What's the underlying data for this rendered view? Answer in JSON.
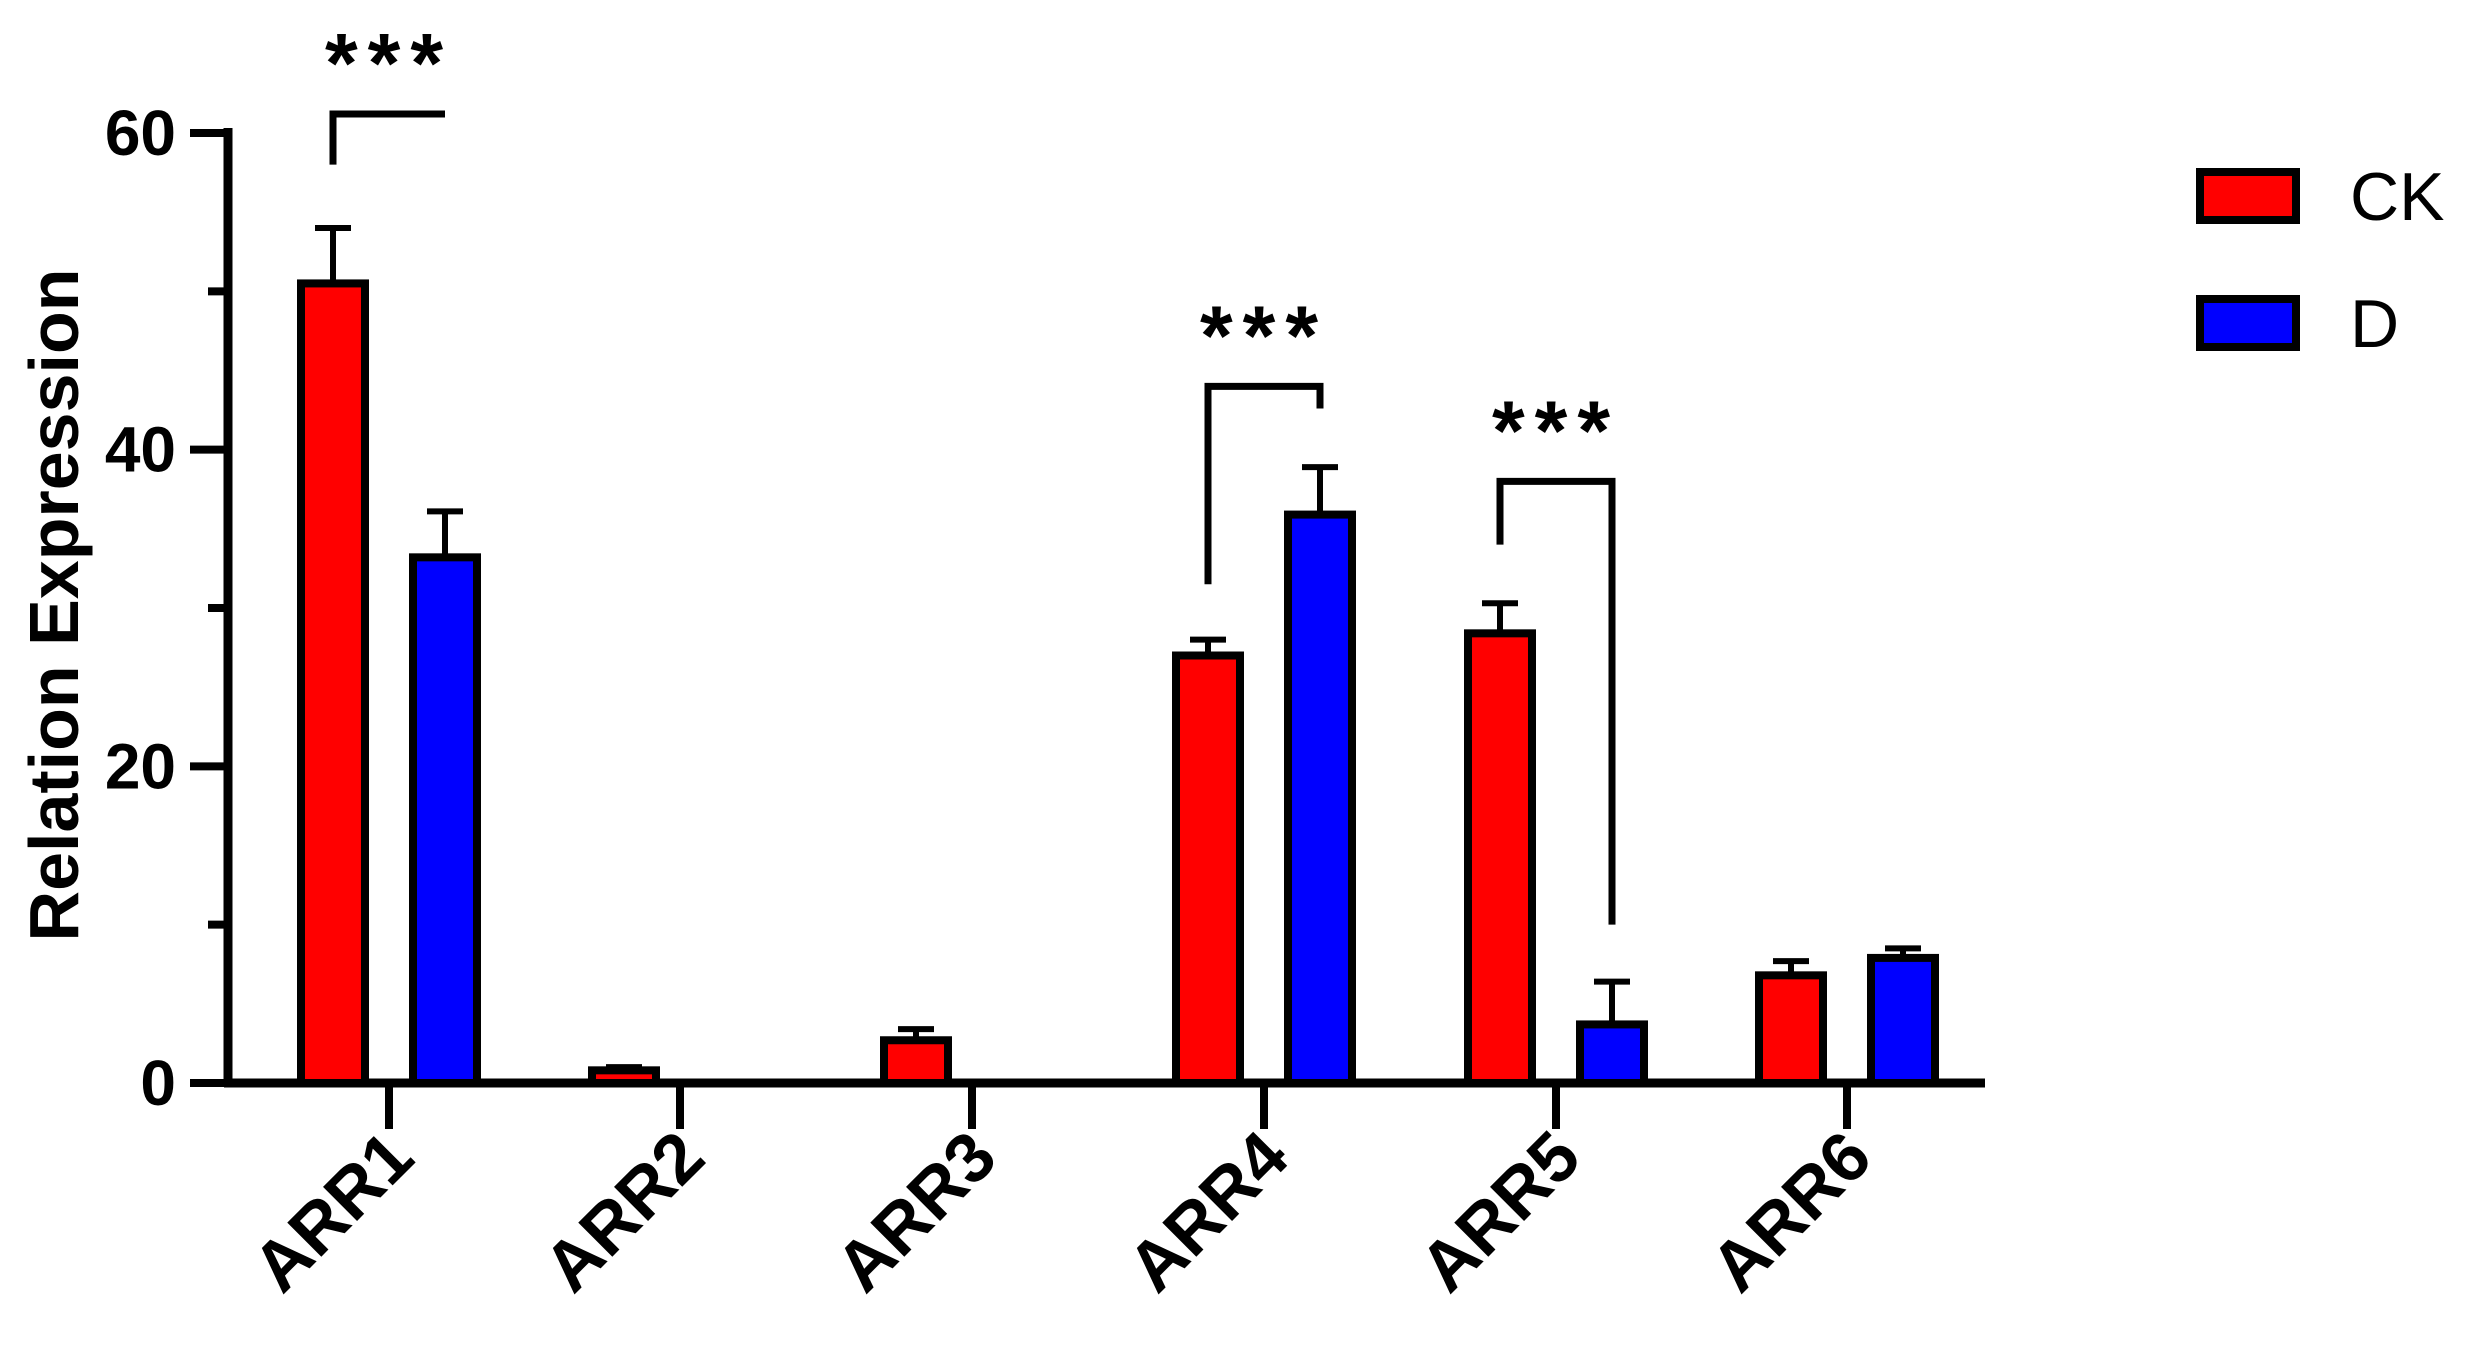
{
  "chart_data": {
    "type": "bar",
    "categories": [
      "ARR1",
      "ARR2",
      "ARR3",
      "ARR4",
      "ARR5",
      "ARR6"
    ],
    "series": [
      {
        "name": "CK",
        "color": "#ff0000",
        "values": [
          50.5,
          0.8,
          2.7,
          27.0,
          28.4,
          6.8
        ],
        "errors": [
          3.5,
          0.2,
          0.7,
          1.0,
          1.9,
          0.9
        ]
      },
      {
        "name": "D",
        "color": "#0000ff",
        "values": [
          33.2,
          0,
          0,
          35.9,
          3.7,
          7.9
        ],
        "errors": [
          2.9,
          0,
          0,
          3.0,
          2.7,
          0.6
        ]
      }
    ],
    "ylabel": "Relation Expression",
    "xlabel": "",
    "title": "",
    "ylim": [
      0,
      60
    ],
    "yticks": [
      0,
      20,
      40,
      60
    ],
    "minor_ticks": [
      10,
      30,
      50
    ],
    "legend_position": "top-right",
    "grid": false,
    "significance": [
      {
        "category": "ARR1",
        "label": "***",
        "left_value": 58.0,
        "right_value": 61.2,
        "bracket_value": 61.2
      },
      {
        "category": "ARR4",
        "label": "***",
        "left_value": 31.5,
        "right_value": 42.6,
        "bracket_value": 44.0
      },
      {
        "category": "ARR5",
        "label": "***",
        "left_value": 34.0,
        "right_value": 10.0,
        "bracket_value": 38.0
      }
    ]
  }
}
